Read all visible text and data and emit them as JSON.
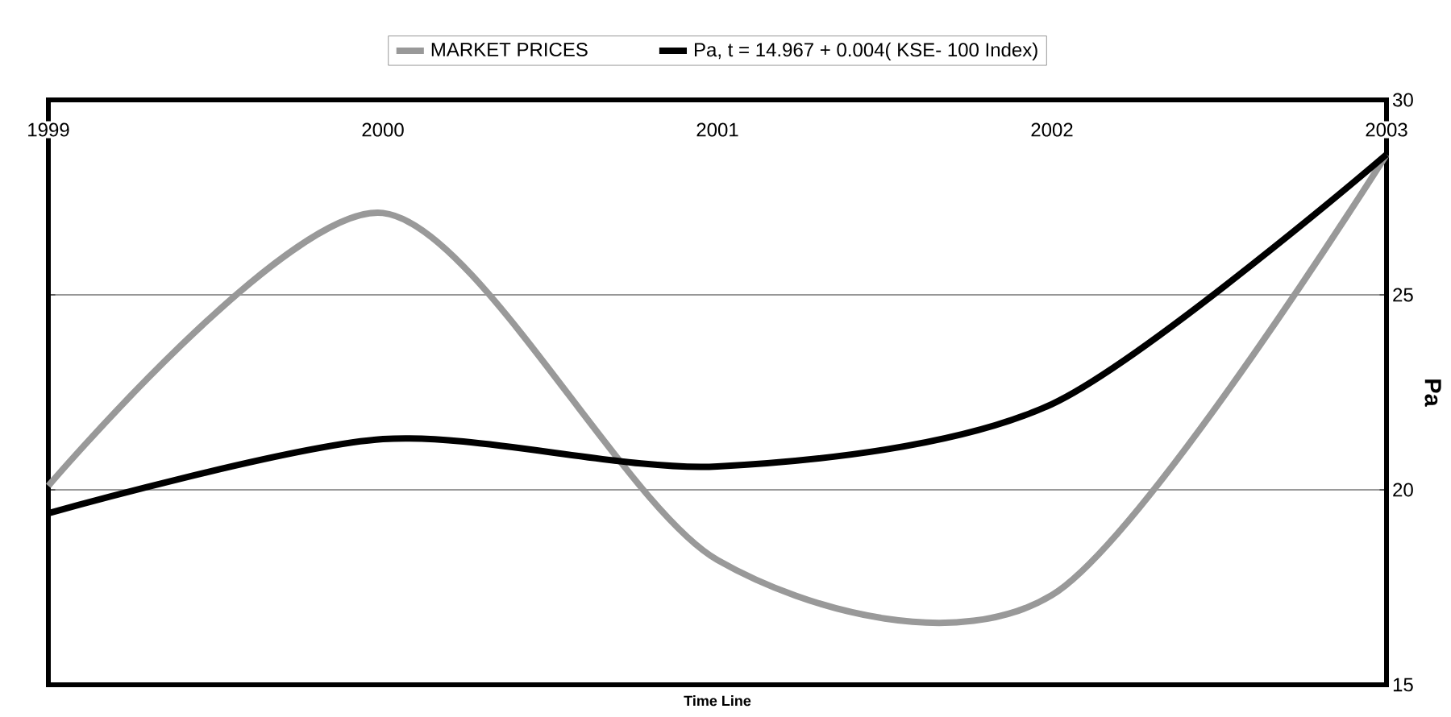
{
  "chart_data": {
    "type": "line",
    "xlabel": "Time Line",
    "ylabel": "Pa",
    "categories": [
      "1999",
      "2000",
      "2001",
      "2002",
      "2003"
    ],
    "series": [
      {
        "name": "MARKET PRICES",
        "color": "#999999",
        "values": [
          20.1,
          27.1,
          18.2,
          17.3,
          28.6
        ]
      },
      {
        "name": "Pa, t = 14.967 + 0.004( KSE- 100 Index)",
        "color": "#000000",
        "values": [
          19.4,
          21.3,
          20.6,
          22.2,
          28.6
        ]
      }
    ],
    "ylim": [
      15,
      30
    ],
    "yticks": [
      15,
      20,
      25,
      30
    ],
    "grid": "y",
    "legend": "top",
    "line_style": "solid"
  }
}
